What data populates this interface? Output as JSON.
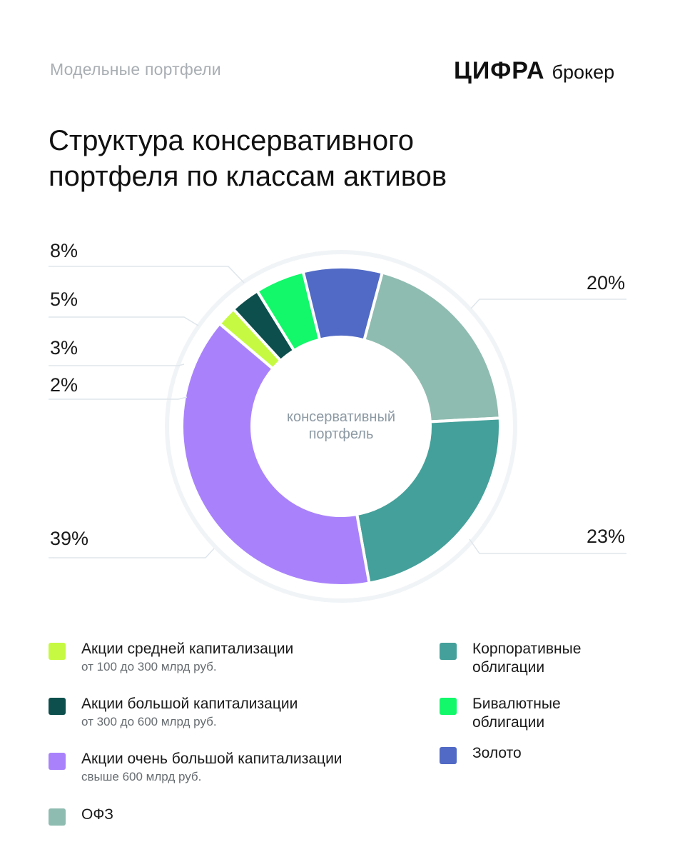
{
  "header": {
    "kicker": "Модельные портфели",
    "logo_main": "ЦИФРА",
    "logo_sub": "брокер"
  },
  "title_line1": "Структура консервативного",
  "title_line2": "портфеля по классам активов",
  "chart_data": {
    "type": "pie",
    "donut": true,
    "center_label_line1": "консервативный",
    "center_label_line2": "портфель",
    "start_angle_deg": 15,
    "slices": [
      {
        "name": "ОФЗ",
        "value": 20,
        "label": "20%",
        "color": "#8fbcb0"
      },
      {
        "name": "Корпоративные облигации",
        "value": 23,
        "label": "23%",
        "color": "#44a09a"
      },
      {
        "name": "Акции очень большой капитализации",
        "value": 39,
        "label": "39%",
        "color": "#a982fb"
      },
      {
        "name": "Акции средней капитализации",
        "value": 2,
        "label": "2%",
        "color": "#c6fa42"
      },
      {
        "name": "Акции большой капитализации",
        "value": 3,
        "label": "3%",
        "color": "#0c4f4c"
      },
      {
        "name": "Бивалютные облигации",
        "value": 5,
        "label": "5%",
        "color": "#12f86a"
      },
      {
        "name": "Золото",
        "value": 8,
        "label": "8%",
        "color": "#516ac5"
      }
    ]
  },
  "legend": {
    "col1": [
      {
        "name": "Акции средней капитализации",
        "note": "от 100 до 300 млрд руб.",
        "color": "#c6fa42"
      },
      {
        "name": "Акции большой капитализации",
        "note": "от 300 до 600 млрд руб.",
        "color": "#0c4f4c"
      },
      {
        "name": "Акции очень большой капитализации",
        "note": "свыше 600 млрд руб.",
        "color": "#a982fb"
      },
      {
        "name": "ОФЗ",
        "color": "#8fbcb0"
      }
    ],
    "col2": [
      {
        "line1": "Корпоративные",
        "line2": "облигации",
        "color": "#44a09a"
      },
      {
        "line1": "Бивалютные",
        "line2": "облигации",
        "color": "#12f86a"
      },
      {
        "line1": "Золото",
        "color": "#516ac5"
      }
    ]
  }
}
